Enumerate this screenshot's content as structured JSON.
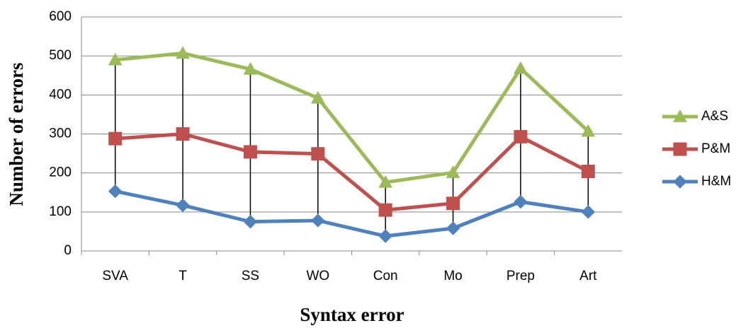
{
  "chart_data": {
    "type": "line",
    "x_label": "Syntax error",
    "y_label": "Number of errors",
    "categories": [
      "SVA",
      "T",
      "SS",
      "WO",
      "Con",
      "Mo",
      "Prep",
      "Art"
    ],
    "series": [
      {
        "name": "A&S",
        "color": "#9bbb59",
        "marker": "triangle",
        "values": [
          490,
          507,
          466,
          392,
          176,
          201,
          468,
          307
        ]
      },
      {
        "name": "P&M",
        "color": "#c0504d",
        "marker": "square",
        "values": [
          288,
          300,
          254,
          249,
          105,
          122,
          293,
          204
        ]
      },
      {
        "name": "H&M",
        "color": "#4f81bd",
        "marker": "diamond",
        "values": [
          153,
          117,
          75,
          78,
          38,
          58,
          126,
          100
        ]
      }
    ],
    "ylim": [
      0,
      600
    ],
    "yticks": [
      0,
      100,
      200,
      300,
      400,
      500,
      600
    ],
    "grid": true,
    "drop_lines": true,
    "legend": "right"
  }
}
